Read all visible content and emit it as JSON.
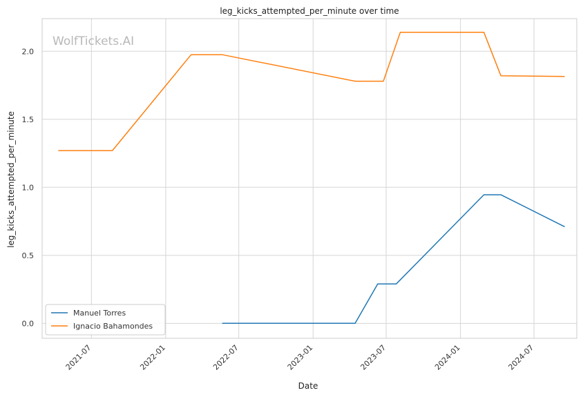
{
  "chart_data": {
    "type": "line",
    "title": "leg_kicks_attempted_per_minute over time",
    "xlabel": "Date",
    "ylabel": "leg_kicks_attempted_per_minute",
    "watermark": "WolfTickets.AI",
    "x_range": [
      "2021-03-01",
      "2024-10-15"
    ],
    "ylim": [
      -0.11,
      2.24
    ],
    "x_ticks": [
      "2021-07",
      "2022-01",
      "2022-07",
      "2023-01",
      "2023-07",
      "2024-01",
      "2024-07"
    ],
    "y_ticks": [
      "0.0",
      "0.5",
      "1.0",
      "1.5",
      "2.0"
    ],
    "grid": true,
    "legend_position": "lower-left",
    "series": [
      {
        "name": "Manuel Torres",
        "color": "#1f77b4",
        "points": [
          {
            "x": "2022-05-21",
            "y": 0.0
          },
          {
            "x": "2023-04-15",
            "y": 0.0
          },
          {
            "x": "2023-06-10",
            "y": 0.29
          },
          {
            "x": "2023-07-26",
            "y": 0.29
          },
          {
            "x": "2024-02-28",
            "y": 0.945
          },
          {
            "x": "2024-04-10",
            "y": 0.945
          },
          {
            "x": "2024-09-15",
            "y": 0.71
          }
        ]
      },
      {
        "name": "Ignacio Bahamondes",
        "color": "#ff7f0e",
        "points": [
          {
            "x": "2021-04-10",
            "y": 1.27
          },
          {
            "x": "2021-08-22",
            "y": 1.27
          },
          {
            "x": "2022-03-05",
            "y": 1.975
          },
          {
            "x": "2022-05-21",
            "y": 1.975
          },
          {
            "x": "2023-04-15",
            "y": 1.78
          },
          {
            "x": "2023-06-24",
            "y": 1.78
          },
          {
            "x": "2023-08-05",
            "y": 2.14
          },
          {
            "x": "2024-02-28",
            "y": 2.14
          },
          {
            "x": "2024-04-10",
            "y": 1.82
          },
          {
            "x": "2024-09-15",
            "y": 1.815
          }
        ]
      }
    ]
  }
}
